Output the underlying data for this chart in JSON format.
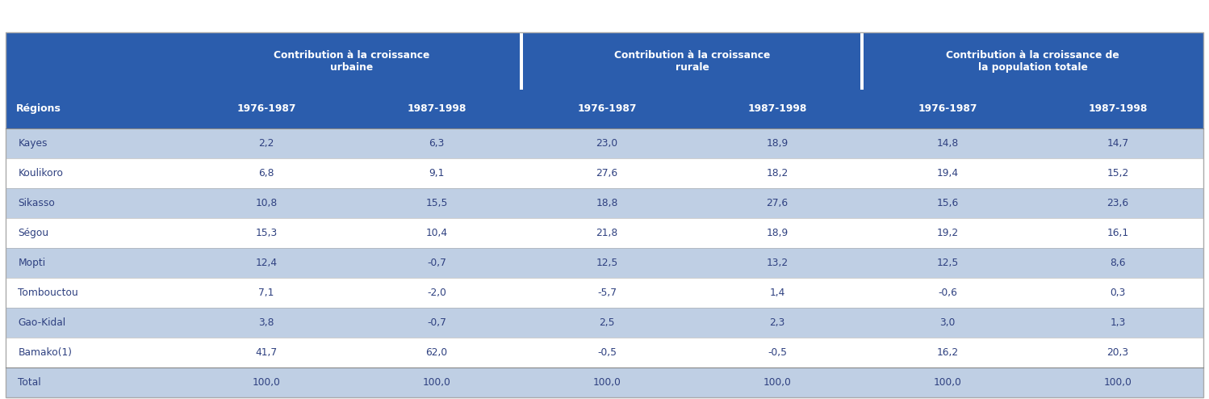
{
  "col_groups": [
    "Contribution à la croissance\nurbaine",
    "Contribution à la croissance\nrurale",
    "Contribution à la croissance de\nla population totale"
  ],
  "sub_cols": [
    "1976-1987",
    "1987-1998"
  ],
  "row_header": "Régions",
  "rows": [
    {
      "region": "Kayes",
      "data": [
        2.2,
        6.3,
        23.0,
        18.9,
        14.8,
        14.7
      ]
    },
    {
      "region": "Koulikoro",
      "data": [
        6.8,
        9.1,
        27.6,
        18.2,
        19.4,
        15.2
      ]
    },
    {
      "region": "Sikasso",
      "data": [
        10.8,
        15.5,
        18.8,
        27.6,
        15.6,
        23.6
      ]
    },
    {
      "region": "Ségou",
      "data": [
        15.3,
        10.4,
        21.8,
        18.9,
        19.2,
        16.1
      ]
    },
    {
      "region": "Mopti",
      "data": [
        12.4,
        -0.7,
        12.5,
        13.2,
        12.5,
        8.6
      ]
    },
    {
      "region": "Tombouctou",
      "data": [
        7.1,
        -2.0,
        -5.7,
        1.4,
        -0.6,
        0.3
      ]
    },
    {
      "region": "Gao-Kidal",
      "data": [
        3.8,
        -0.7,
        2.5,
        2.3,
        3.0,
        1.3
      ]
    },
    {
      "region": "Bamako(1)",
      "data": [
        41.7,
        62.0,
        -0.5,
        -0.5,
        16.2,
        20.3
      ]
    }
  ],
  "total_row": {
    "region": "Total",
    "data": [
      100.0,
      100.0,
      100.0,
      100.0,
      100.0,
      100.0
    ]
  },
  "header_bg": "#2B5DAD",
  "header_text_color": "#FFFFFF",
  "row_bg_blue": "#BFCFE4",
  "row_bg_white": "#FFFFFF",
  "total_row_bg": "#BFCFE4",
  "text_color": "#2E4080",
  "figsize": [
    14.98,
    4.94
  ],
  "dpi": 100
}
